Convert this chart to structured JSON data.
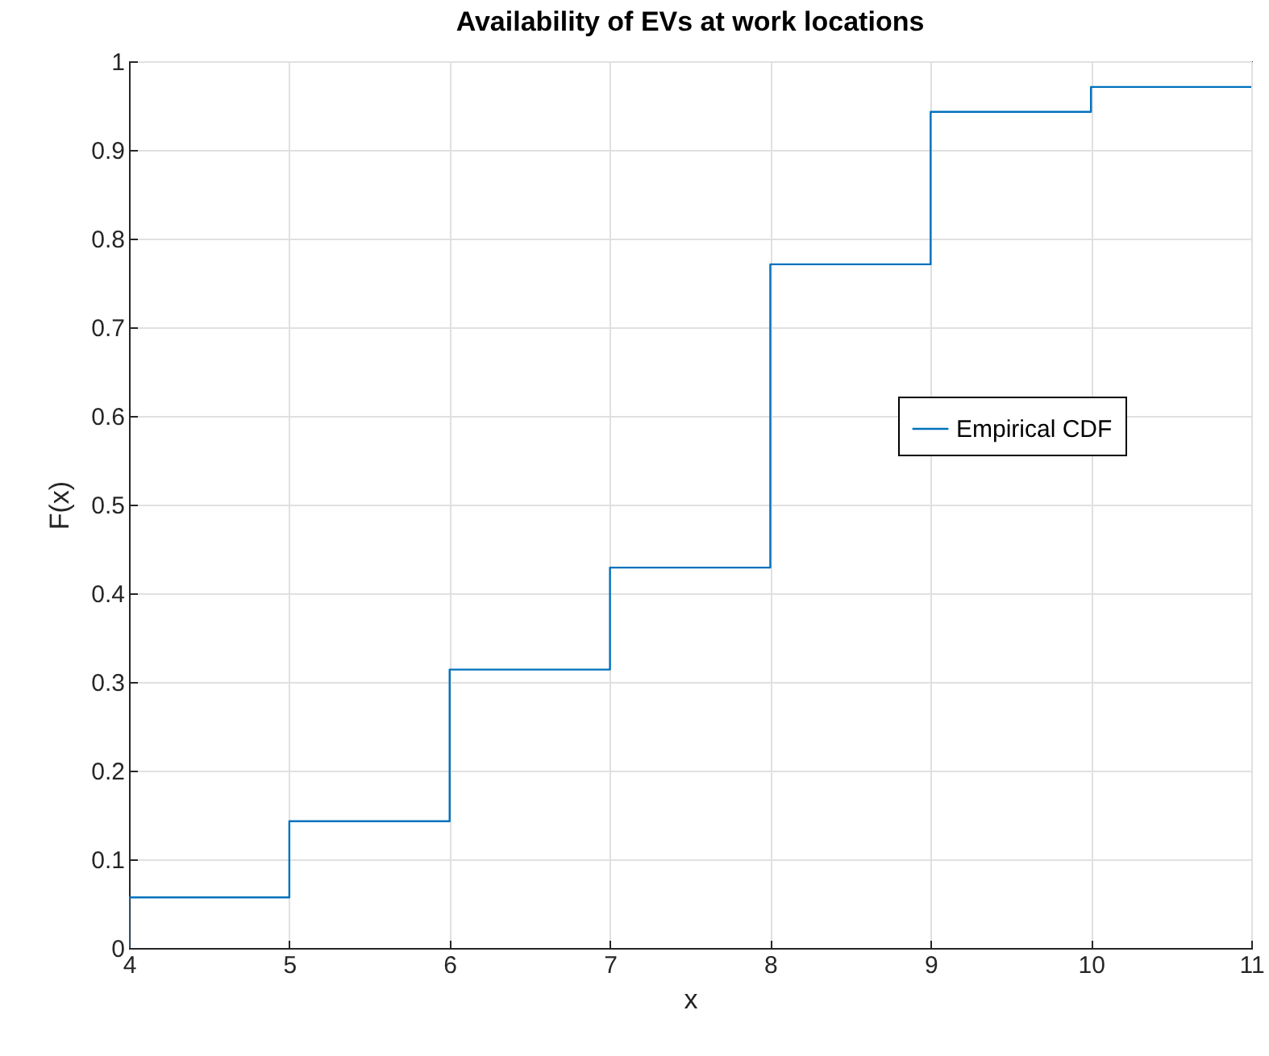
{
  "chart_data": {
    "type": "step",
    "title": "Availability of EVs at work locations",
    "xlabel": "x",
    "ylabel": "F(x)",
    "x": [
      4,
      4,
      5,
      6,
      7,
      8,
      9,
      10,
      11
    ],
    "series": [
      {
        "name": "Empirical CDF",
        "color": "#0072bd",
        "values": [
          0,
          0.057,
          0.143,
          0.314,
          0.429,
          0.771,
          0.943,
          0.971,
          0.971
        ]
      }
    ],
    "xlim": [
      4,
      11
    ],
    "xticks": [
      4,
      5,
      6,
      7,
      8,
      9,
      10,
      11
    ],
    "ylim": [
      0,
      1
    ],
    "yticks": [
      0,
      0.1,
      0.2,
      0.3,
      0.4,
      0.5,
      0.6,
      0.7,
      0.8,
      0.9,
      1
    ],
    "grid": true,
    "legend": "right",
    "line_style": "solid",
    "marker": "none"
  }
}
